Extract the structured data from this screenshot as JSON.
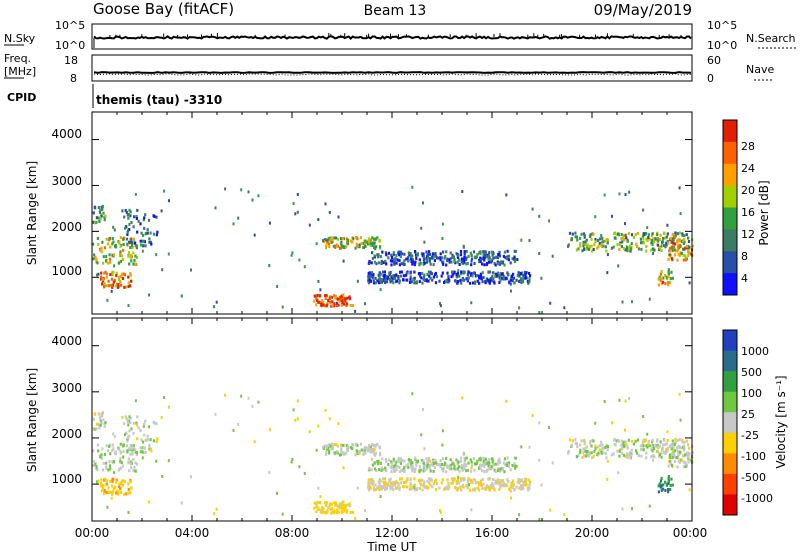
{
  "header": {
    "station": "Goose Bay (fitACF)",
    "beam": "Beam 13",
    "date": "09/May/2019"
  },
  "noise_panel": {
    "left_label": "N.Sky",
    "left_ticks": [
      "10^5",
      "10^0"
    ],
    "right_label": "N.Search",
    "right_ticks": [
      "10^5",
      "10^0"
    ]
  },
  "freq_panel": {
    "left_label_1": "Freq.",
    "left_label_2": "[MHz]",
    "left_ticks": [
      "18",
      "8"
    ],
    "right_label": "Nave",
    "right_ticks": [
      "60",
      "0"
    ],
    "cpid_label": "CPID",
    "cpid_text": "themis (tau) -3310"
  },
  "power_panel": {
    "ylabel": "Slant Range [km]",
    "yticks": [
      "4000",
      "3000",
      "2000",
      "1000"
    ],
    "colorbar_label": "Power [dB]",
    "colorbar_ticks": [
      "28",
      "24",
      "20",
      "16",
      "12",
      "8",
      "4"
    ],
    "colors": [
      "#1010ff",
      "#2850a8",
      "#3c7c64",
      "#30a040",
      "#a0d000",
      "#ffa000",
      "#ff6000",
      "#e02000"
    ]
  },
  "velocity_panel": {
    "ylabel": "Slant Range [km]",
    "yticks": [
      "4000",
      "3000",
      "2000",
      "1000"
    ],
    "colorbar_label": "Velocity [m s⁻¹]",
    "colorbar_ticks": [
      "1000",
      "500",
      "100",
      "25",
      "-25",
      "-100",
      "-500",
      "-1000"
    ],
    "colors": [
      "#2040c0",
      "#2a6c8c",
      "#30a040",
      "#70c840",
      "#c8c8c8",
      "#ffd000",
      "#ff8c00",
      "#ff4000",
      "#e00000"
    ]
  },
  "time_axis": {
    "ticks": [
      "00:00",
      "04:00",
      "08:00",
      "12:00",
      "16:00",
      "20:00",
      "00:00"
    ],
    "label": "Time UT"
  },
  "chart_data": {
    "type": "heatmap",
    "title": "Goose Bay (fitACF)",
    "xlabel": "Time UT",
    "ylabel": "Slant Range [km]",
    "xlim": [
      "00:00",
      "24:00"
    ],
    "ylim": [
      200,
      4600
    ],
    "panels": [
      "Power [dB]",
      "Velocity [m s⁻¹]"
    ],
    "power_clim": [
      0,
      32
    ],
    "velocity_clim": [
      -1200,
      1200
    ],
    "echo_regions": [
      {
        "t0": 0.0,
        "t1": 1.8,
        "r0": 1300,
        "r1": 1900,
        "power": 18,
        "velocity": 20
      },
      {
        "t0": 0.3,
        "t1": 1.6,
        "r0": 800,
        "r1": 1150,
        "power": 24,
        "velocity": -80
      },
      {
        "t0": 0.0,
        "t1": 0.5,
        "r0": 2200,
        "r1": 2600,
        "power": 12,
        "velocity": 10
      },
      {
        "t0": 1.2,
        "t1": 2.6,
        "r0": 1700,
        "r1": 2500,
        "power": 8,
        "velocity": 10
      },
      {
        "t0": 8.8,
        "t1": 10.4,
        "r0": 400,
        "r1": 650,
        "power": 28,
        "velocity": -60
      },
      {
        "t0": 9.2,
        "t1": 11.5,
        "r0": 1650,
        "r1": 1900,
        "power": 18,
        "velocity": 10
      },
      {
        "t0": 11.0,
        "t1": 17.0,
        "r0": 1300,
        "r1": 1600,
        "power": 6,
        "velocity": 15
      },
      {
        "t0": 11.0,
        "t1": 17.5,
        "r0": 900,
        "r1": 1150,
        "power": 6,
        "velocity": -15
      },
      {
        "t0": 19.0,
        "t1": 23.9,
        "r0": 1600,
        "r1": 2000,
        "power": 14,
        "velocity": 5
      },
      {
        "t0": 23.0,
        "t1": 24.0,
        "r0": 1400,
        "r1": 1900,
        "power": 22,
        "velocity": 10
      },
      {
        "t0": 22.6,
        "t1": 23.2,
        "r0": 850,
        "r1": 1200,
        "power": 22,
        "velocity": 600
      }
    ]
  }
}
